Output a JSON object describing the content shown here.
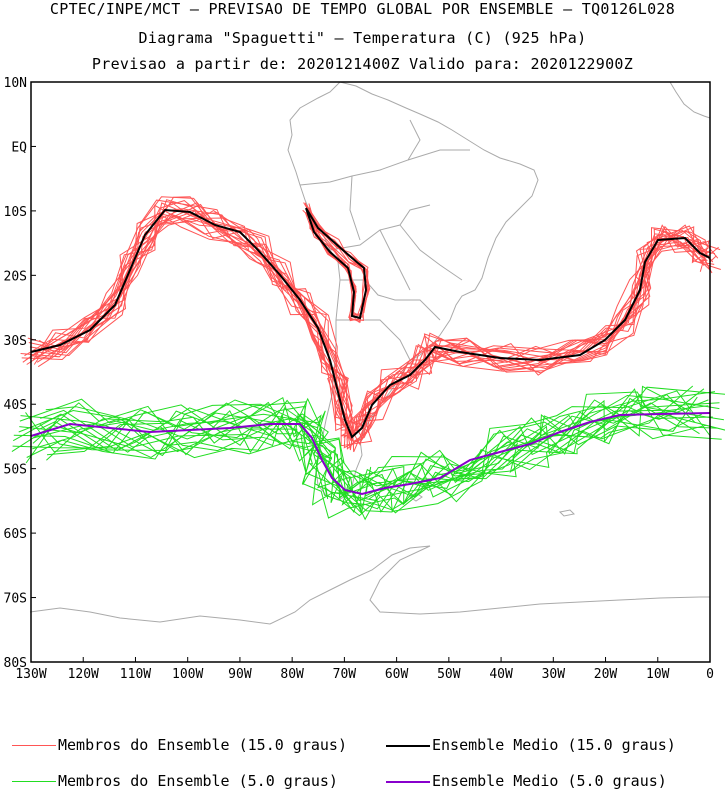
{
  "header": {
    "line1": "CPTEC/INPE/MCT – PREVISAO DE TEMPO GLOBAL POR ENSEMBLE – TQ0126L028",
    "line2": "Diagrama \"Spaguetti\" – Temperatura (C) (925 hPa)",
    "line3": "Previsao a partir de: 2020121400Z  Valido para: 2020122900Z"
  },
  "map": {
    "lon_range": [
      -130,
      0
    ],
    "lat_range": [
      -80,
      10
    ],
    "lat_ticks": [
      "10N",
      "EQ",
      "10S",
      "20S",
      "30S",
      "40S",
      "50S",
      "60S",
      "70S",
      "80S"
    ],
    "lon_ticks": [
      "130W",
      "120W",
      "110W",
      "100W",
      "90W",
      "80W",
      "70W",
      "60W",
      "50W",
      "40W",
      "30W",
      "20W",
      "10W",
      "0"
    ],
    "land_color": "#aaaaaa"
  },
  "legend": [
    {
      "label": "Membros do Ensemble (15.0 graus)",
      "color": "#ff5555"
    },
    {
      "label": "Ensemble Medio (15.0 graus)",
      "color": "#000000"
    },
    {
      "label": "Membros do Ensemble (5.0 graus)",
      "color": "#22dd22"
    },
    {
      "label": "Ensemble Medio (5.0 graus)",
      "color": "#8800cc"
    }
  ]
}
